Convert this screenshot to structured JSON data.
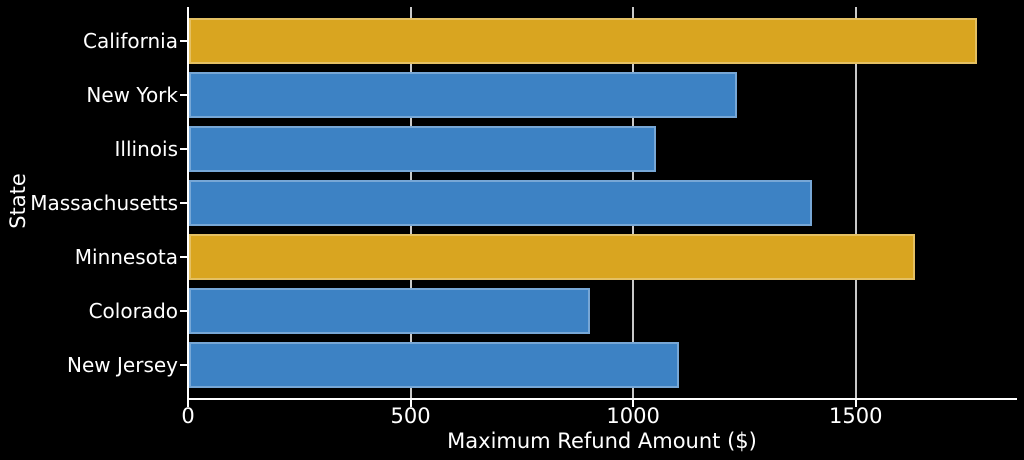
{
  "figure": {
    "background": "#000000",
    "text_color": "#ffffff",
    "spine_color": "#ffffff"
  },
  "chart_data": {
    "type": "bar",
    "orientation": "horizontal",
    "title": "",
    "xlabel": "Maximum Refund Amount ($)",
    "ylabel": "State",
    "categories": [
      "California",
      "New York",
      "Illinois",
      "Massachusetts",
      "Minnesota",
      "Colorado",
      "New Jersey"
    ],
    "values": [
      1770,
      1230,
      1050,
      1400,
      1630,
      900,
      1100
    ],
    "bar_colors": [
      "#d9a520",
      "#3d82c4",
      "#3d82c4",
      "#3d82c4",
      "#d9a520",
      "#3d82c4",
      "#3d82c4"
    ],
    "base_color": "#3d82c4",
    "highlight_color": "#d9a520",
    "highlighted_categories": [
      "California",
      "Minnesota"
    ],
    "xticks": [
      0,
      500,
      1000,
      1500
    ],
    "xtick_labels": [
      "0",
      "500",
      "1000",
      "1500"
    ],
    "xlim": [
      0,
      1860
    ],
    "grid": "vertical",
    "grid_color": "#c9c9c9",
    "legend": "none"
  }
}
